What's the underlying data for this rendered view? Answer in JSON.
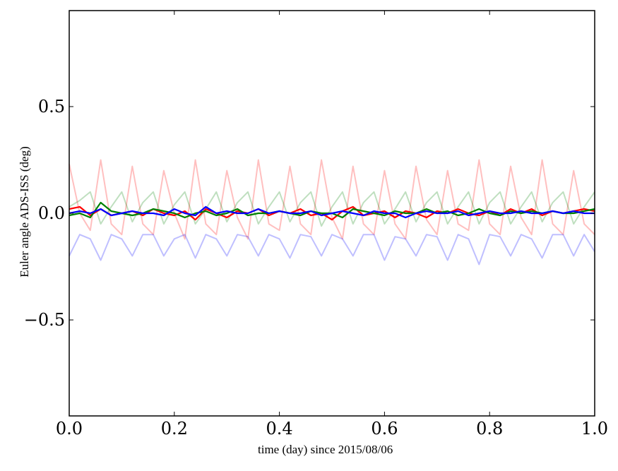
{
  "chart_data": {
    "type": "line",
    "title": "",
    "xlabel": "time (day) since 2015/08/06",
    "ylabel": "Euler angle ADS-ISS (deg)",
    "xlim": [
      0.0,
      1.0
    ],
    "ylim": [
      -0.95,
      0.95
    ],
    "xticks": [
      "0.0",
      "0.2",
      "0.4",
      "0.6",
      "0.8",
      "1.0"
    ],
    "yticks": [
      "0.5",
      "0.0",
      "−0.5"
    ],
    "xtick_values": [
      0.0,
      0.2,
      0.4,
      0.6,
      0.8,
      1.0
    ],
    "ytick_values": [
      0.5,
      0.0,
      -0.5
    ],
    "grid": false,
    "legend": "none",
    "x": [
      0.0,
      0.02,
      0.04,
      0.06,
      0.08,
      0.1,
      0.12,
      0.14,
      0.16,
      0.18,
      0.2,
      0.22,
      0.24,
      0.26,
      0.28,
      0.3,
      0.32,
      0.34,
      0.36,
      0.38,
      0.4,
      0.42,
      0.44,
      0.46,
      0.48,
      0.5,
      0.52,
      0.54,
      0.56,
      0.58,
      0.6,
      0.62,
      0.64,
      0.66,
      0.68,
      0.7,
      0.72,
      0.74,
      0.76,
      0.78,
      0.8,
      0.82,
      0.84,
      0.86,
      0.88,
      0.9,
      0.92,
      0.94,
      0.96,
      0.98,
      1.0
    ],
    "series": [
      {
        "color": "#ff0000",
        "opacity": 0.25,
        "values": [
          0.23,
          0.0,
          -0.08,
          0.25,
          -0.05,
          -0.1,
          0.22,
          -0.05,
          -0.1,
          0.2,
          0.0,
          -0.12,
          0.25,
          -0.05,
          -0.1,
          0.2,
          -0.02,
          -0.12,
          0.25,
          -0.05,
          -0.08,
          0.22,
          -0.05,
          -0.1,
          0.25,
          -0.02,
          -0.12,
          0.22,
          -0.05,
          -0.1,
          0.2,
          -0.05,
          -0.12,
          0.22,
          -0.03,
          -0.1,
          0.2,
          -0.05,
          -0.08,
          0.25,
          -0.05,
          -0.1,
          0.22,
          -0.02,
          -0.1,
          0.25,
          -0.05,
          -0.1,
          0.2,
          -0.05,
          -0.1
        ]
      },
      {
        "color": "#008000",
        "opacity": 0.25,
        "values": [
          0.03,
          0.06,
          0.1,
          -0.05,
          0.03,
          0.1,
          -0.04,
          0.05,
          0.1,
          -0.05,
          0.04,
          0.1,
          -0.05,
          0.02,
          0.1,
          -0.04,
          0.05,
          0.1,
          -0.05,
          0.03,
          0.1,
          -0.04,
          0.05,
          0.1,
          -0.06,
          0.03,
          0.1,
          -0.05,
          0.05,
          0.1,
          -0.05,
          0.02,
          0.1,
          -0.04,
          0.05,
          0.1,
          -0.05,
          0.03,
          0.1,
          -0.05,
          0.05,
          0.1,
          -0.05,
          0.03,
          0.1,
          -0.04,
          0.05,
          0.1,
          -0.05,
          0.03,
          0.1
        ]
      },
      {
        "color": "#0000ff",
        "opacity": 0.25,
        "values": [
          -0.2,
          -0.1,
          -0.12,
          -0.22,
          -0.1,
          -0.12,
          -0.2,
          -0.1,
          -0.1,
          -0.2,
          -0.12,
          -0.1,
          -0.21,
          -0.1,
          -0.12,
          -0.2,
          -0.1,
          -0.11,
          -0.2,
          -0.1,
          -0.12,
          -0.21,
          -0.1,
          -0.11,
          -0.2,
          -0.1,
          -0.12,
          -0.2,
          -0.1,
          -0.1,
          -0.22,
          -0.11,
          -0.12,
          -0.2,
          -0.1,
          -0.11,
          -0.22,
          -0.1,
          -0.12,
          -0.24,
          -0.1,
          -0.11,
          -0.2,
          -0.1,
          -0.12,
          -0.21,
          -0.1,
          -0.1,
          -0.2,
          -0.1,
          -0.18
        ]
      },
      {
        "color": "#ff0000",
        "opacity": 1.0,
        "values": [
          0.02,
          0.03,
          -0.01,
          0.02,
          -0.01,
          0.0,
          0.01,
          -0.01,
          0.02,
          0.0,
          -0.01,
          0.01,
          -0.03,
          0.02,
          0.0,
          -0.02,
          0.01,
          0.0,
          0.02,
          -0.01,
          0.01,
          0.0,
          0.02,
          -0.01,
          0.0,
          -0.03,
          0.01,
          0.03,
          -0.01,
          0.0,
          0.01,
          -0.02,
          0.01,
          0.0,
          -0.02,
          0.01,
          0.0,
          0.02,
          0.0,
          -0.01,
          0.01,
          -0.01,
          0.02,
          0.0,
          0.02,
          -0.01,
          0.01,
          0.0,
          0.01,
          0.02,
          0.01
        ]
      },
      {
        "color": "#008000",
        "opacity": 1.0,
        "values": [
          -0.01,
          0.0,
          -0.02,
          0.05,
          0.01,
          0.0,
          -0.01,
          0.0,
          0.02,
          0.01,
          0.0,
          -0.02,
          0.0,
          0.01,
          -0.01,
          0.0,
          0.02,
          -0.01,
          0.0,
          0.0,
          0.01,
          0.0,
          -0.01,
          0.01,
          0.0,
          0.0,
          -0.02,
          0.02,
          0.01,
          0.0,
          -0.01,
          0.01,
          0.0,
          0.0,
          0.02,
          0.0,
          0.01,
          -0.01,
          0.0,
          0.02,
          0.0,
          -0.01,
          0.01,
          0.0,
          0.01,
          0.0,
          0.01,
          0.0,
          0.0,
          0.01,
          0.02
        ]
      },
      {
        "color": "#0000ff",
        "opacity": 1.0,
        "values": [
          0.0,
          0.01,
          0.0,
          0.02,
          -0.01,
          0.0,
          0.01,
          0.0,
          0.0,
          -0.01,
          0.02,
          0.0,
          -0.01,
          0.03,
          0.0,
          0.01,
          0.0,
          0.0,
          0.02,
          0.0,
          0.01,
          0.0,
          0.0,
          0.01,
          -0.01,
          0.0,
          0.01,
          0.0,
          -0.01,
          0.01,
          0.0,
          0.0,
          -0.02,
          0.0,
          0.01,
          0.0,
          0.0,
          0.01,
          -0.01,
          0.0,
          0.01,
          0.0,
          0.0,
          0.01,
          0.0,
          0.0,
          0.01,
          0.0,
          0.01,
          0.0,
          0.0
        ]
      }
    ]
  }
}
